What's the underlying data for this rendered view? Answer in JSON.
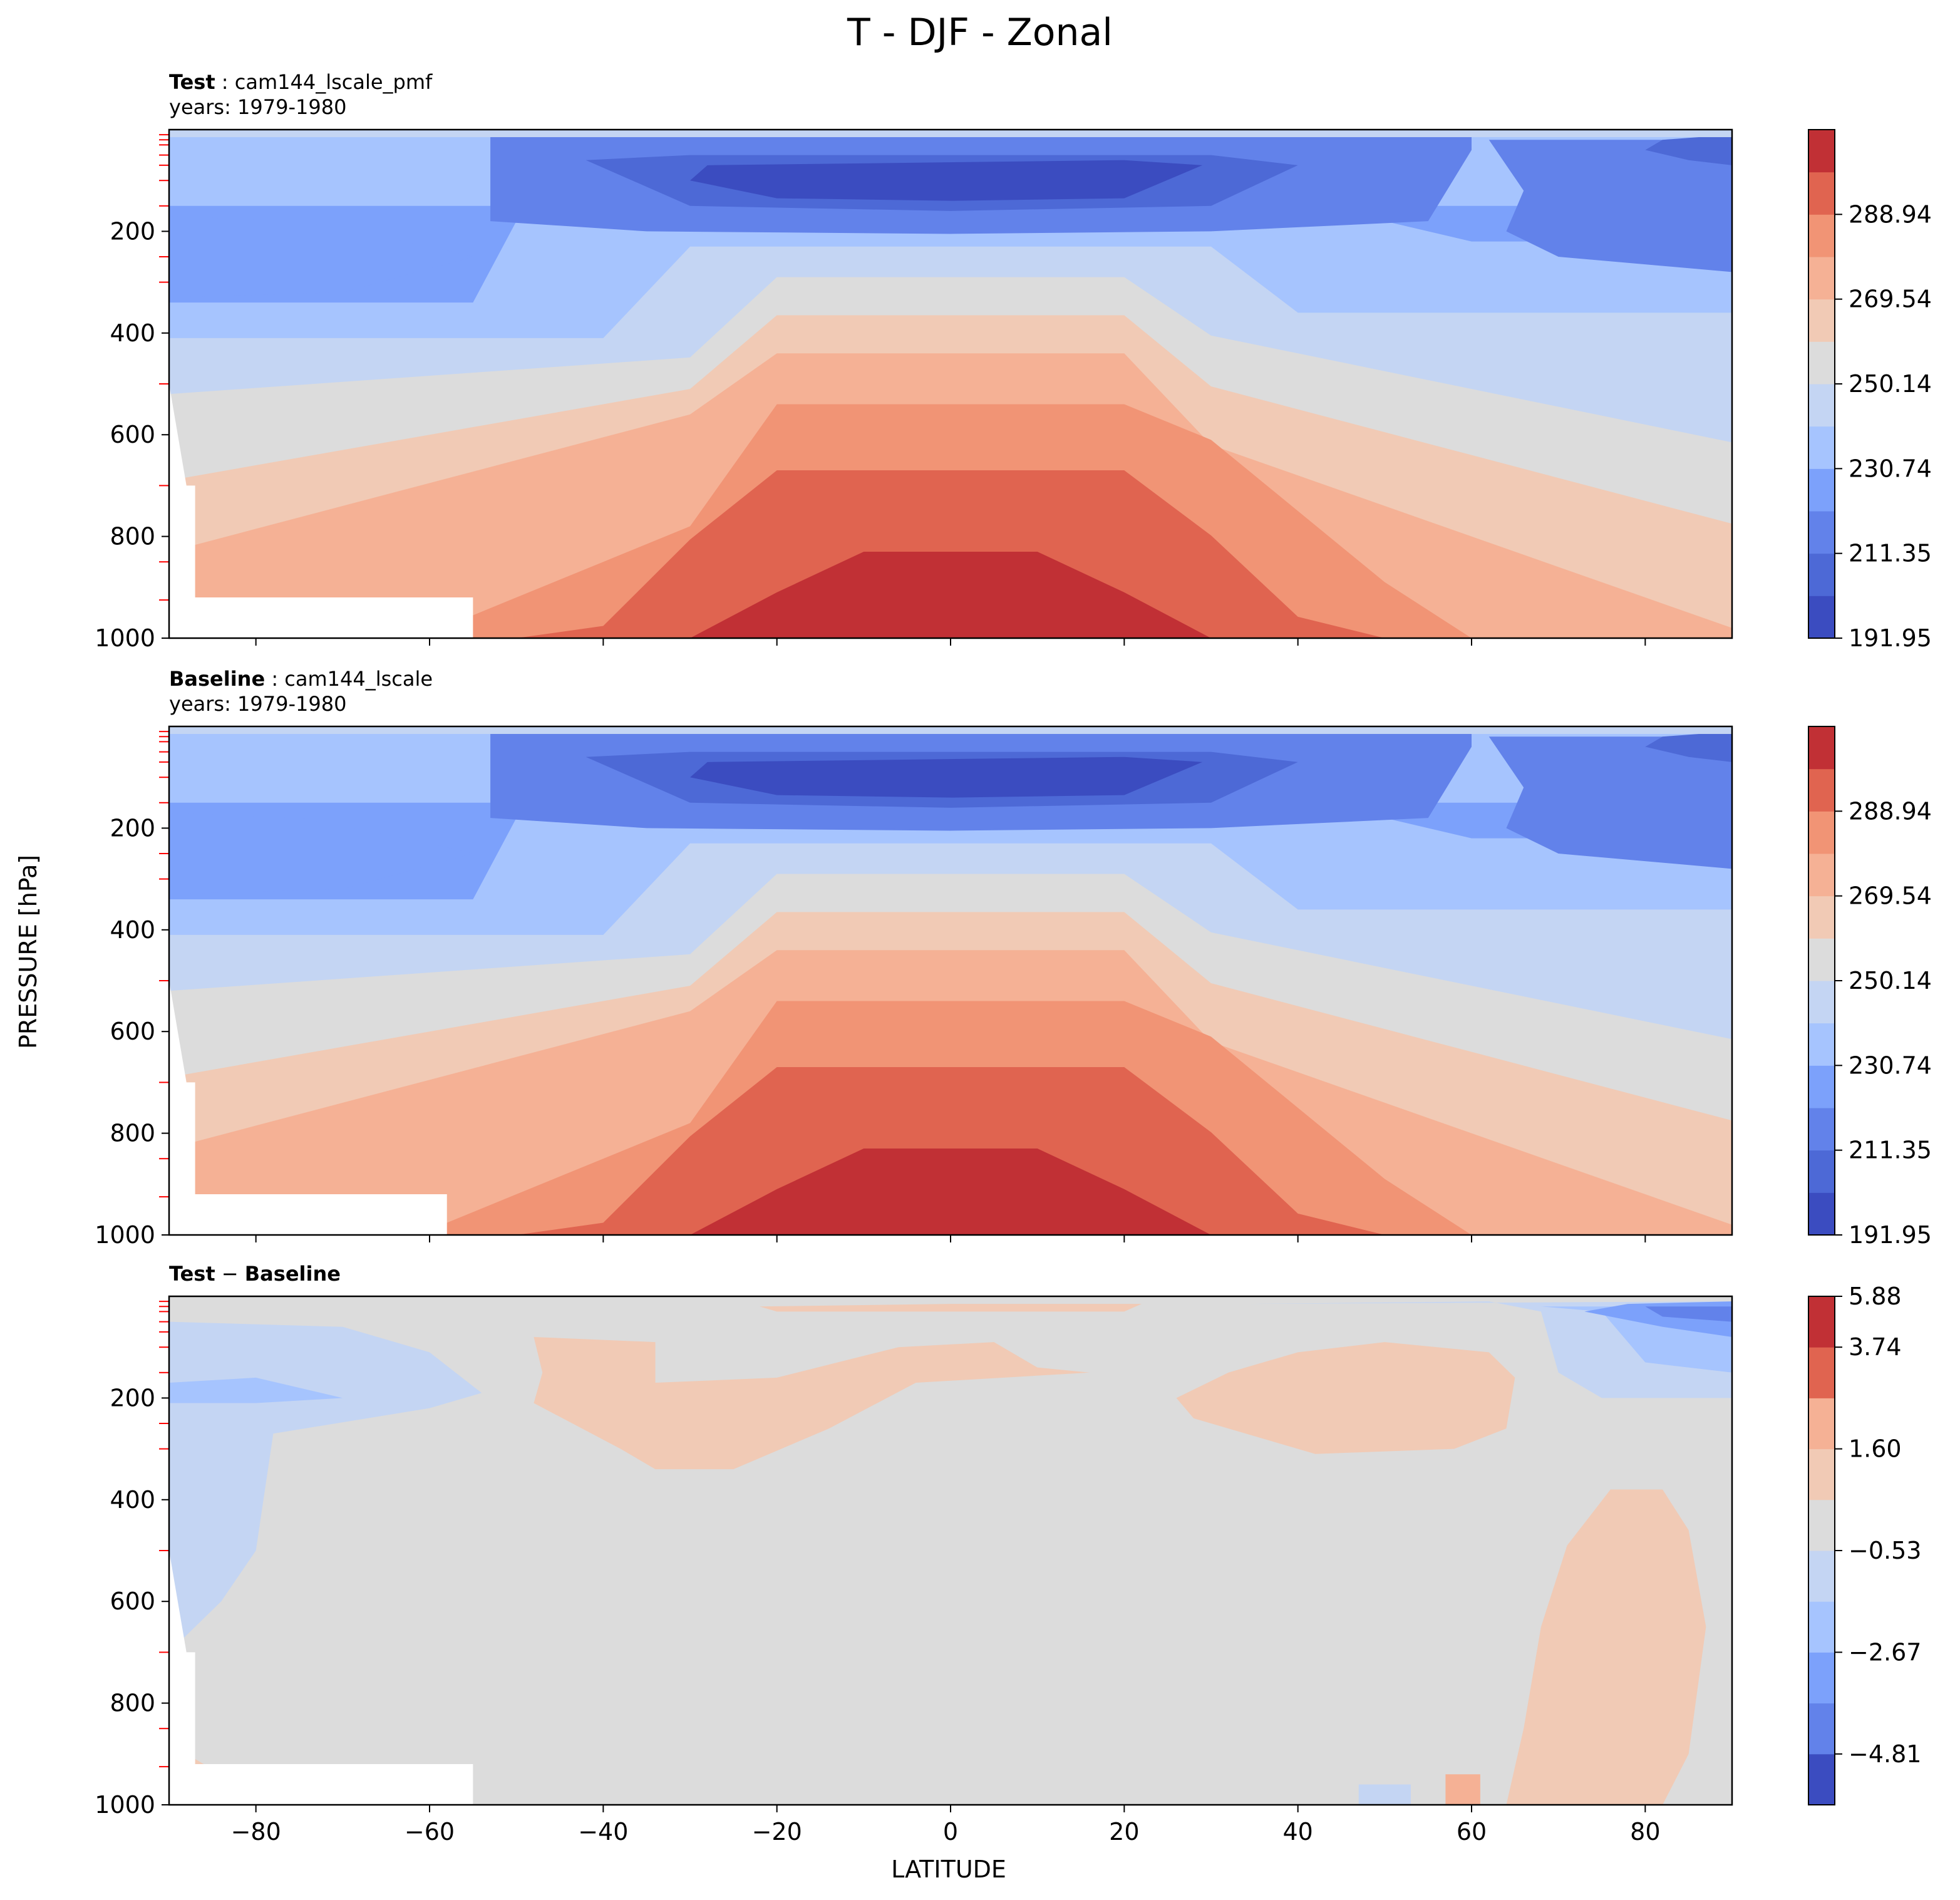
{
  "figure": {
    "title": "T - DJF - Zonal",
    "xlabel": "LATITUDE",
    "ylabel": "PRESSURE [hPa]"
  },
  "panels": {
    "test": {
      "label_bold": "Test",
      "label_rest": " : cam144_lscale_pmf",
      "years": "years: 1979-1980"
    },
    "baseline": {
      "label_bold": "Baseline",
      "label_rest": " : cam144_lscale",
      "years": "years: 1979-1980"
    },
    "diff": {
      "label_bold_a": "Test",
      "label_minus": " − ",
      "label_bold_b": "Baseline"
    }
  },
  "colors": {
    "abs_levels": [
      "#3b4cc0",
      "#4d69d6",
      "#6282ea",
      "#7ca1fb",
      "#a6c4fe",
      "#c4d5f3",
      "#dcdcdc",
      "#f1cab5",
      "#f5b195",
      "#f19475",
      "#e06450",
      "#c13035"
    ],
    "diff_levels": [
      "#3b4cc0",
      "#6282ea",
      "#7ca1fb",
      "#a6c4fe",
      "#c4d5f3",
      "#dcdcdc",
      "#f1cab5",
      "#f5b195",
      "#e06450",
      "#c13035"
    ]
  },
  "chart_data": [
    {
      "type": "heatmap",
      "name": "Test",
      "x": {
        "label": "LATITUDE",
        "lim": [
          -90,
          90
        ],
        "ticks": [
          -80,
          -60,
          -40,
          -20,
          0,
          20,
          40,
          60,
          80
        ]
      },
      "y": {
        "label": "PRESSURE [hPa]",
        "lim": [
          1000,
          0
        ],
        "inverted": true,
        "ticks": [
          200,
          400,
          600,
          800,
          1000
        ]
      },
      "colorbar": {
        "ticks": [
          "191.95",
          "211.35",
          "230.74",
          "250.14",
          "269.54",
          "288.94"
        ],
        "range": [
          191.95,
          308.3
        ]
      },
      "contour_top_pressure_by_level_at_lat": {
        "lat": [
          -90,
          -60,
          -40,
          -20,
          0,
          20,
          40,
          60,
          90
        ],
        "level_boundaries_hPa": {
          "b1": [
            1000,
            1000,
            1000,
            1000,
            1000,
            1000,
            1000,
            1000,
            1000
          ],
          "250": [
            560,
            610,
            450,
            350,
            340,
            350,
            450,
            560,
            620
          ],
          "260": [
            760,
            720,
            560,
            430,
            410,
            430,
            560,
            760,
            830
          ],
          "270": [
            860,
            830,
            680,
            560,
            540,
            560,
            700,
            900,
            1000
          ],
          "280": [
            1000,
            960,
            840,
            700,
            670,
            700,
            880,
            1000,
            1000
          ],
          "290": [
            1000,
            1000,
            1000,
            860,
            830,
            860,
            1000,
            1000,
            1000
          ]
        }
      }
    },
    {
      "type": "heatmap",
      "name": "Baseline",
      "x": {
        "label": "LATITUDE",
        "lim": [
          -90,
          90
        ],
        "ticks": [
          -80,
          -60,
          -40,
          -20,
          0,
          20,
          40,
          60,
          80
        ]
      },
      "y": {
        "label": "PRESSURE [hPa]",
        "lim": [
          1000,
          0
        ],
        "inverted": true,
        "ticks": [
          200,
          400,
          600,
          800,
          1000
        ]
      },
      "colorbar": {
        "ticks": [
          "191.95",
          "211.35",
          "230.74",
          "250.14",
          "269.54",
          "288.94"
        ],
        "range": [
          191.95,
          308.3
        ]
      }
    },
    {
      "type": "heatmap",
      "name": "Test - Baseline",
      "x": {
        "label": "LATITUDE",
        "lim": [
          -90,
          90
        ],
        "ticks": [
          -80,
          -60,
          -40,
          -20,
          0,
          20,
          40,
          60,
          80
        ]
      },
      "y": {
        "label": "PRESSURE [hPa]",
        "lim": [
          1000,
          0
        ],
        "inverted": true,
        "ticks": [
          200,
          400,
          600,
          800,
          1000
        ]
      },
      "colorbar": {
        "ticks": [
          "−4.81",
          "−2.67",
          "−0.53",
          "1.60",
          "3.74",
          "5.88"
        ],
        "range": [
          -5.88,
          5.88
        ]
      }
    }
  ]
}
